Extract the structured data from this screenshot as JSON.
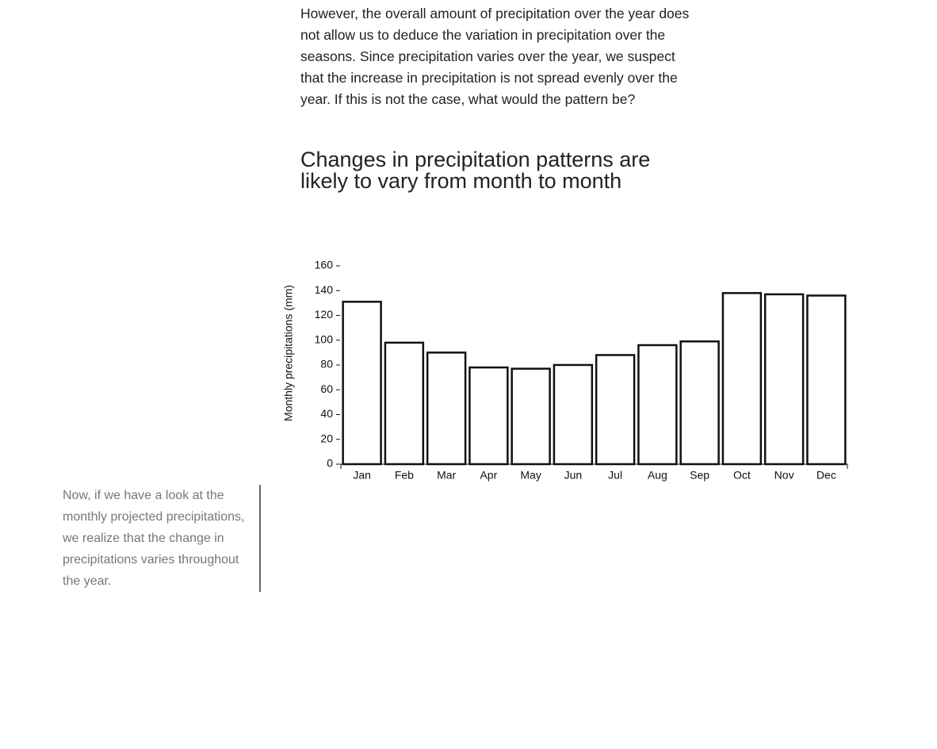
{
  "paragraph": "However, the overall amount of precipitation over the year does not allow us to deduce the variation in precipitation over the seasons. Since precipitation varies over the year, we suspect that the increase in precipitation is not spread evenly over the year. If this is not the case, what would the pattern be?",
  "heading": "Changes in precipitation patterns are likely to vary from month to month",
  "sidenote": "Now, if we have a look at the monthly projected precipitations, we realize that the change in precipitations varies throughout the year.",
  "chart_data": {
    "type": "bar",
    "y_label": "Monthly precipitations (mm)",
    "categories": [
      "Jan",
      "Feb",
      "Mar",
      "Apr",
      "May",
      "Jun",
      "Jul",
      "Aug",
      "Sep",
      "Oct",
      "Nov",
      "Dec"
    ],
    "values": [
      131,
      98,
      90,
      78,
      77,
      80,
      88,
      96,
      99,
      138,
      137,
      136
    ],
    "color": "#ffffff",
    "stroke": "#111111",
    "ylim": [
      0,
      160
    ],
    "yticks": [
      0,
      20,
      40,
      60,
      80,
      100,
      120,
      140,
      160
    ]
  }
}
